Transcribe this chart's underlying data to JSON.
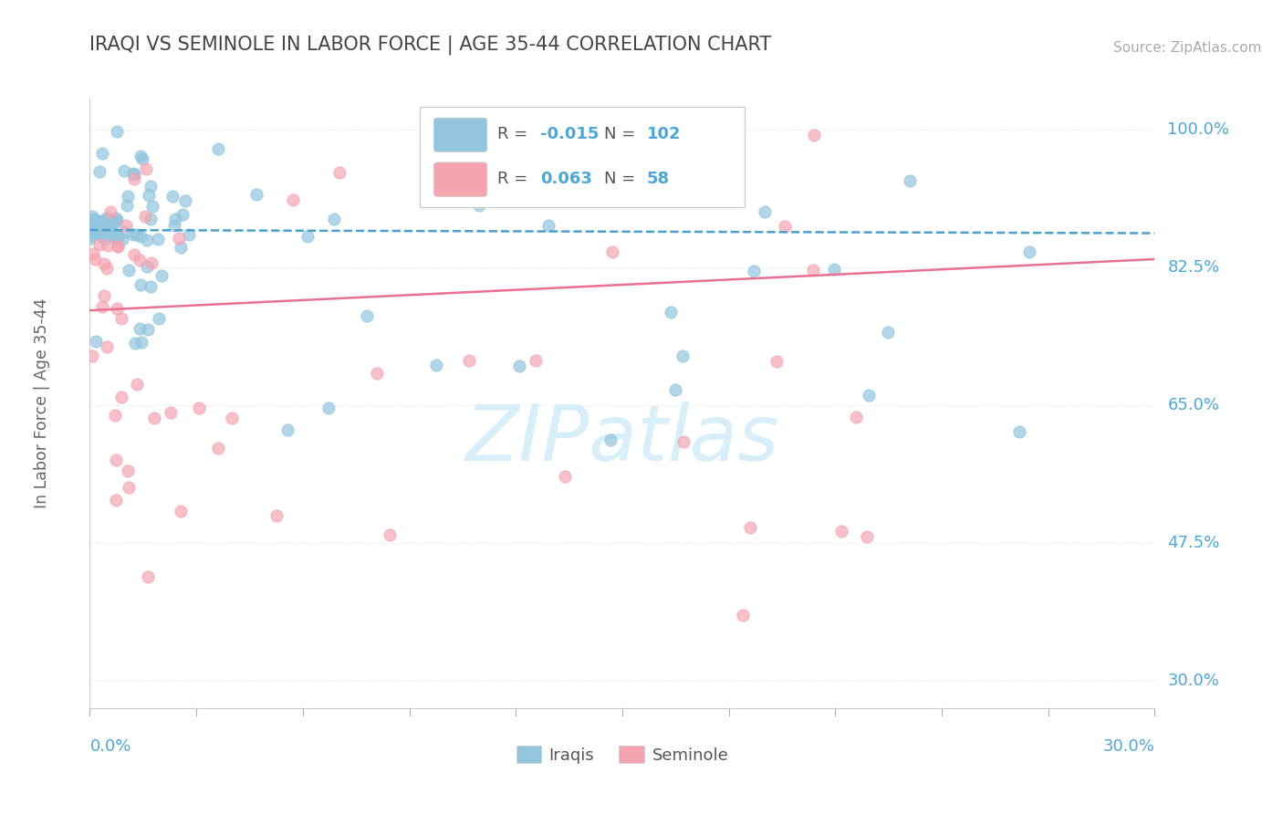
{
  "title": "IRAQI VS SEMINOLE IN LABOR FORCE | AGE 35-44 CORRELATION CHART",
  "source_text": "Source: ZipAtlas.com",
  "ylabel": "In Labor Force | Age 35-44",
  "right_yticklabels": [
    "30.0%",
    "47.5%",
    "65.0%",
    "82.5%",
    "100.0%"
  ],
  "right_yticks": [
    0.3,
    0.475,
    0.65,
    0.825,
    1.0
  ],
  "xlim": [
    0.0,
    0.3
  ],
  "ylim": [
    0.265,
    1.04
  ],
  "iraqis_R": -0.015,
  "iraqis_N": 102,
  "seminole_R": 0.063,
  "seminole_N": 58,
  "iraqi_dot_color": "#92C5DE",
  "seminole_dot_color": "#F4A4B0",
  "iraqi_line_color": "#4B9FCC",
  "seminole_line_color": "#E87090",
  "axis_label_color": "#4da6d4",
  "watermark_color": "#D8EEF8",
  "legend_val_color": "#4da6d4",
  "background_color": "#ffffff",
  "grid_color": "#e0e0e0",
  "iraqi_trend_y0": 0.872,
  "iraqi_trend_y1": 0.868,
  "seminole_trend_y0": 0.77,
  "seminole_trend_y1": 0.835
}
